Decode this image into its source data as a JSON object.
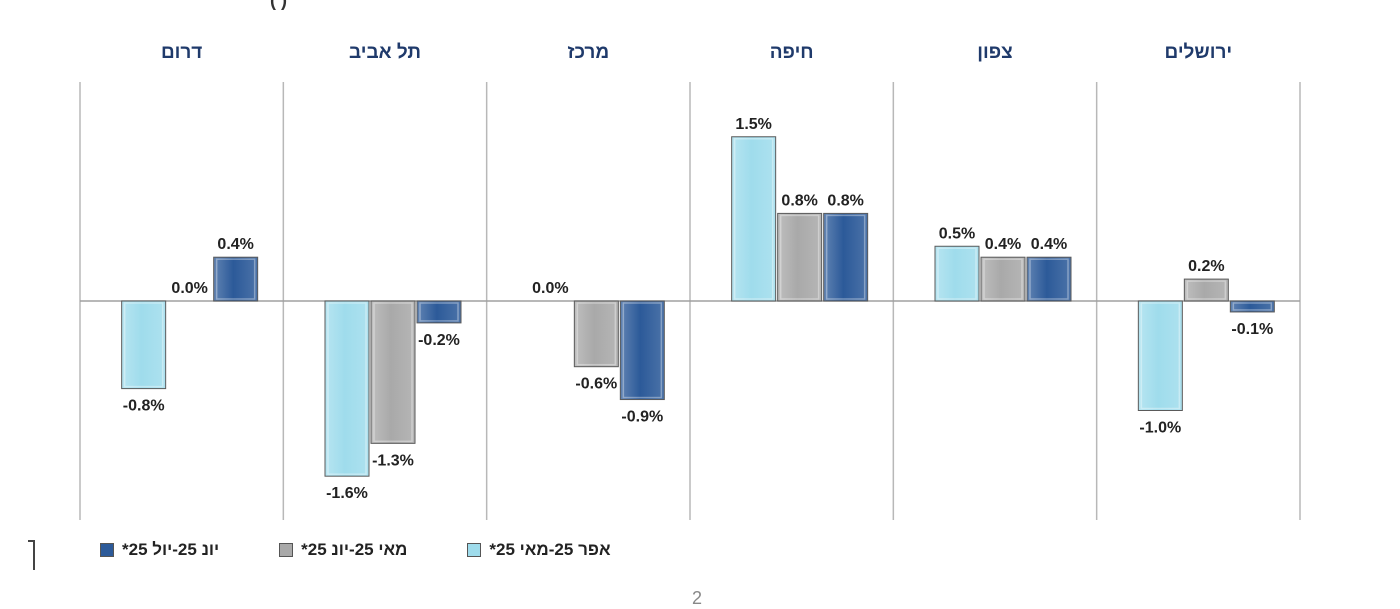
{
  "top_text": "(                    )",
  "page_number": "2",
  "chart_data": {
    "type": "bar",
    "categories": [
      "ירושלים",
      "צפון",
      "חיפה",
      "מרכז",
      "תל אביב",
      "דרום"
    ],
    "series": [
      {
        "name": "אפר 25-מאי 25*",
        "color": "#9fdcec",
        "values": [
          -1.0,
          0.5,
          1.5,
          0.0,
          -1.6,
          -0.8
        ]
      },
      {
        "name": "מאי 25-יונ 25*",
        "color": "#a9a9a9",
        "values": [
          0.2,
          0.4,
          0.8,
          -0.6,
          -1.3,
          0.0
        ]
      },
      {
        "name": "יונ 25-יול 25*",
        "color": "#2c5a99",
        "values": [
          -0.1,
          0.4,
          0.8,
          -0.9,
          -0.2,
          0.4
        ]
      }
    ],
    "value_labels": [
      [
        "-1.0%",
        "0.5%",
        "1.5%",
        "0.0%",
        "-1.6%",
        "-0.8%"
      ],
      [
        "0.2%",
        "0.4%",
        "0.8%",
        "-0.6%",
        "-1.3%",
        "0.0%"
      ],
      [
        "-0.1%",
        "0.4%",
        "0.8%",
        "-0.9%",
        "-0.2%",
        "0.4%"
      ]
    ],
    "ylim": [
      -2.0,
      2.0
    ],
    "grid": false,
    "legend_position": "bottom"
  }
}
